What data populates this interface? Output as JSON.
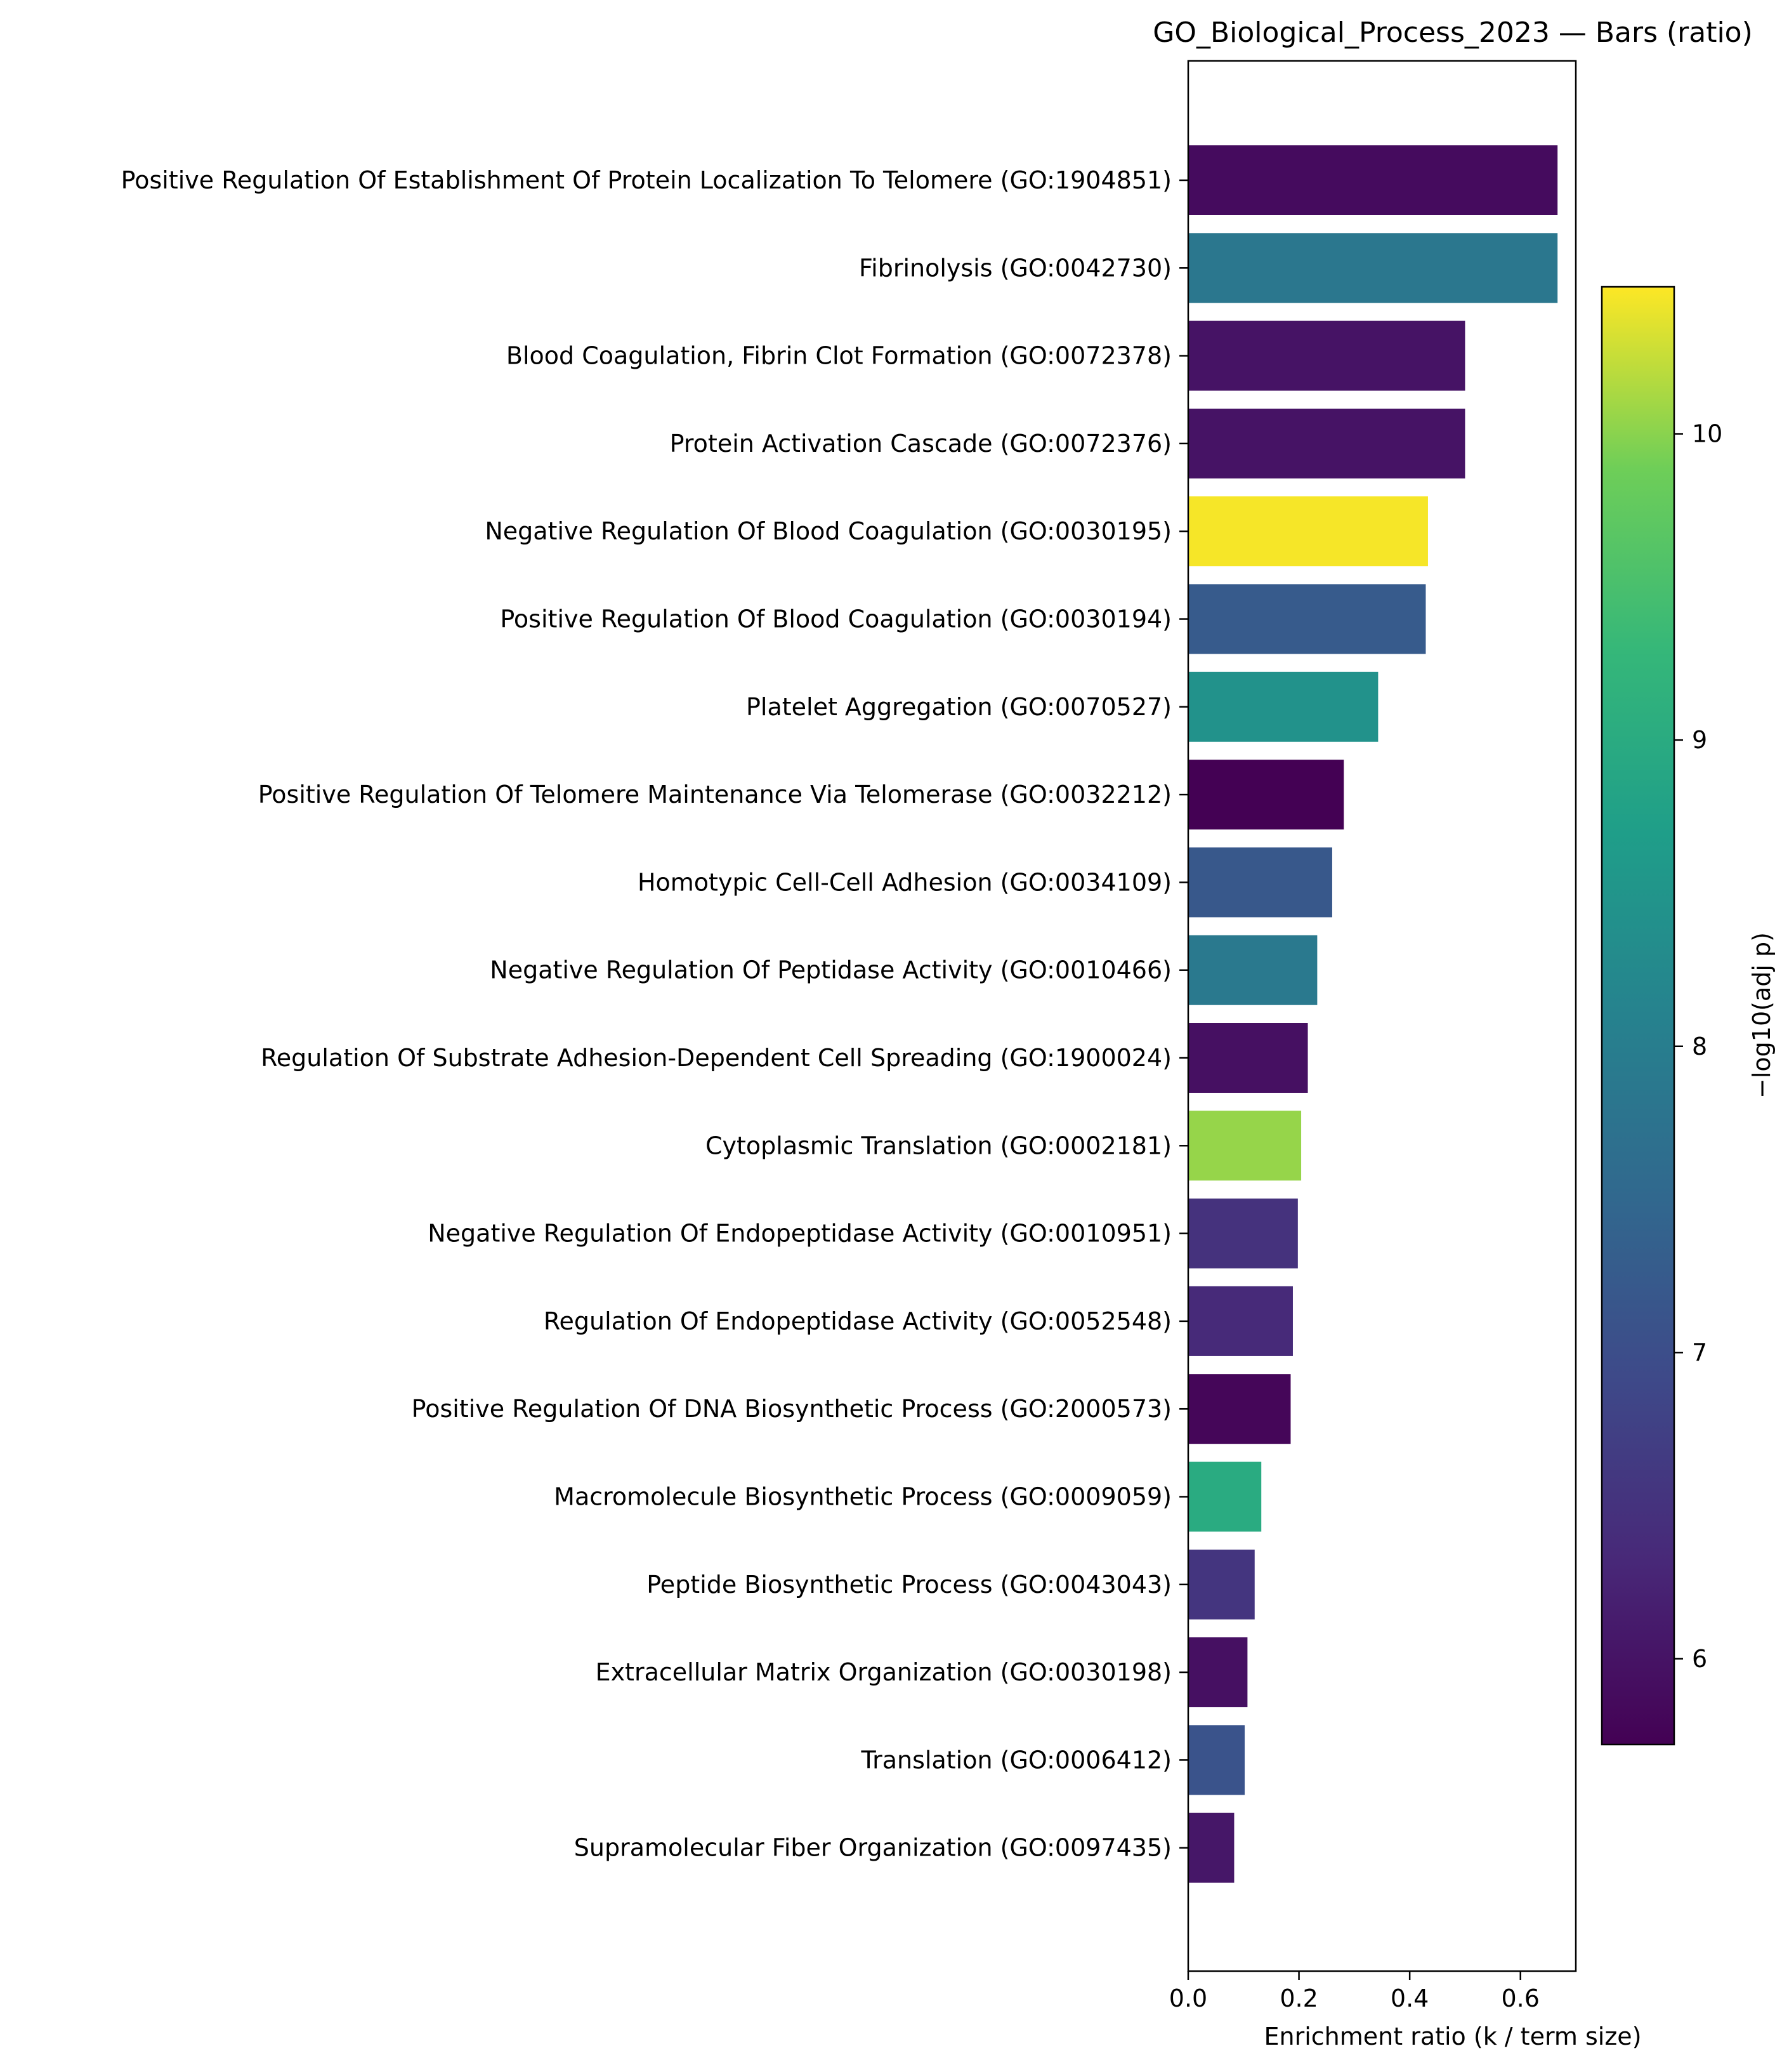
{
  "chart_data": {
    "type": "bar",
    "orientation": "horizontal",
    "title": "GO_Biological_Process_2023 — Bars (ratio)",
    "xlabel": "Enrichment ratio (k / term size)",
    "xlim": [
      0,
      0.7
    ],
    "xticks": [
      "0.0",
      "0.2",
      "0.4",
      "0.6"
    ],
    "colorbar": {
      "label": "−log10(adj p)",
      "range": [
        5.72,
        10.48
      ],
      "ticks": [
        "6",
        "7",
        "8",
        "9",
        "10"
      ],
      "colormap": "viridis"
    },
    "categories": [
      "Positive Regulation Of Establishment Of Protein Localization To Telomere (GO:1904851)",
      "Fibrinolysis (GO:0042730)",
      "Blood Coagulation, Fibrin Clot Formation (GO:0072378)",
      "Protein Activation Cascade (GO:0072376)",
      "Negative Regulation Of Blood Coagulation (GO:0030195)",
      "Positive Regulation Of Blood Coagulation (GO:0030194)",
      "Platelet Aggregation (GO:0070527)",
      "Positive Regulation Of Telomere Maintenance Via Telomerase (GO:0032212)",
      "Homotypic Cell-Cell Adhesion (GO:0034109)",
      "Negative Regulation Of Peptidase Activity (GO:0010466)",
      "Regulation Of Substrate Adhesion-Dependent Cell Spreading (GO:1900024)",
      "Cytoplasmic Translation (GO:0002181)",
      "Negative Regulation Of Endopeptidase Activity (GO:0010951)",
      "Regulation Of Endopeptidase Activity (GO:0052548)",
      "Positive Regulation Of DNA Biosynthetic Process (GO:2000573)",
      "Macromolecule Biosynthetic Process (GO:0009059)",
      "Peptide Biosynthetic Process (GO:0043043)",
      "Extracellular Matrix Organization (GO:0030198)",
      "Translation (GO:0006412)",
      "Supramolecular Fiber Organization (GO:0097435)"
    ],
    "values": [
      0.667,
      0.667,
      0.5,
      0.5,
      0.433,
      0.429,
      0.343,
      0.281,
      0.26,
      0.233,
      0.216,
      0.204,
      0.198,
      0.189,
      0.185,
      0.132,
      0.12,
      0.107,
      0.102,
      0.083
    ],
    "color_values": [
      5.88,
      7.85,
      6.0,
      6.0,
      10.45,
      7.25,
      8.45,
      5.72,
      7.2,
      7.9,
      5.95,
      10.05,
      6.5,
      6.35,
      5.8,
      9.0,
      6.55,
      5.95,
      7.1,
      6.05
    ]
  }
}
